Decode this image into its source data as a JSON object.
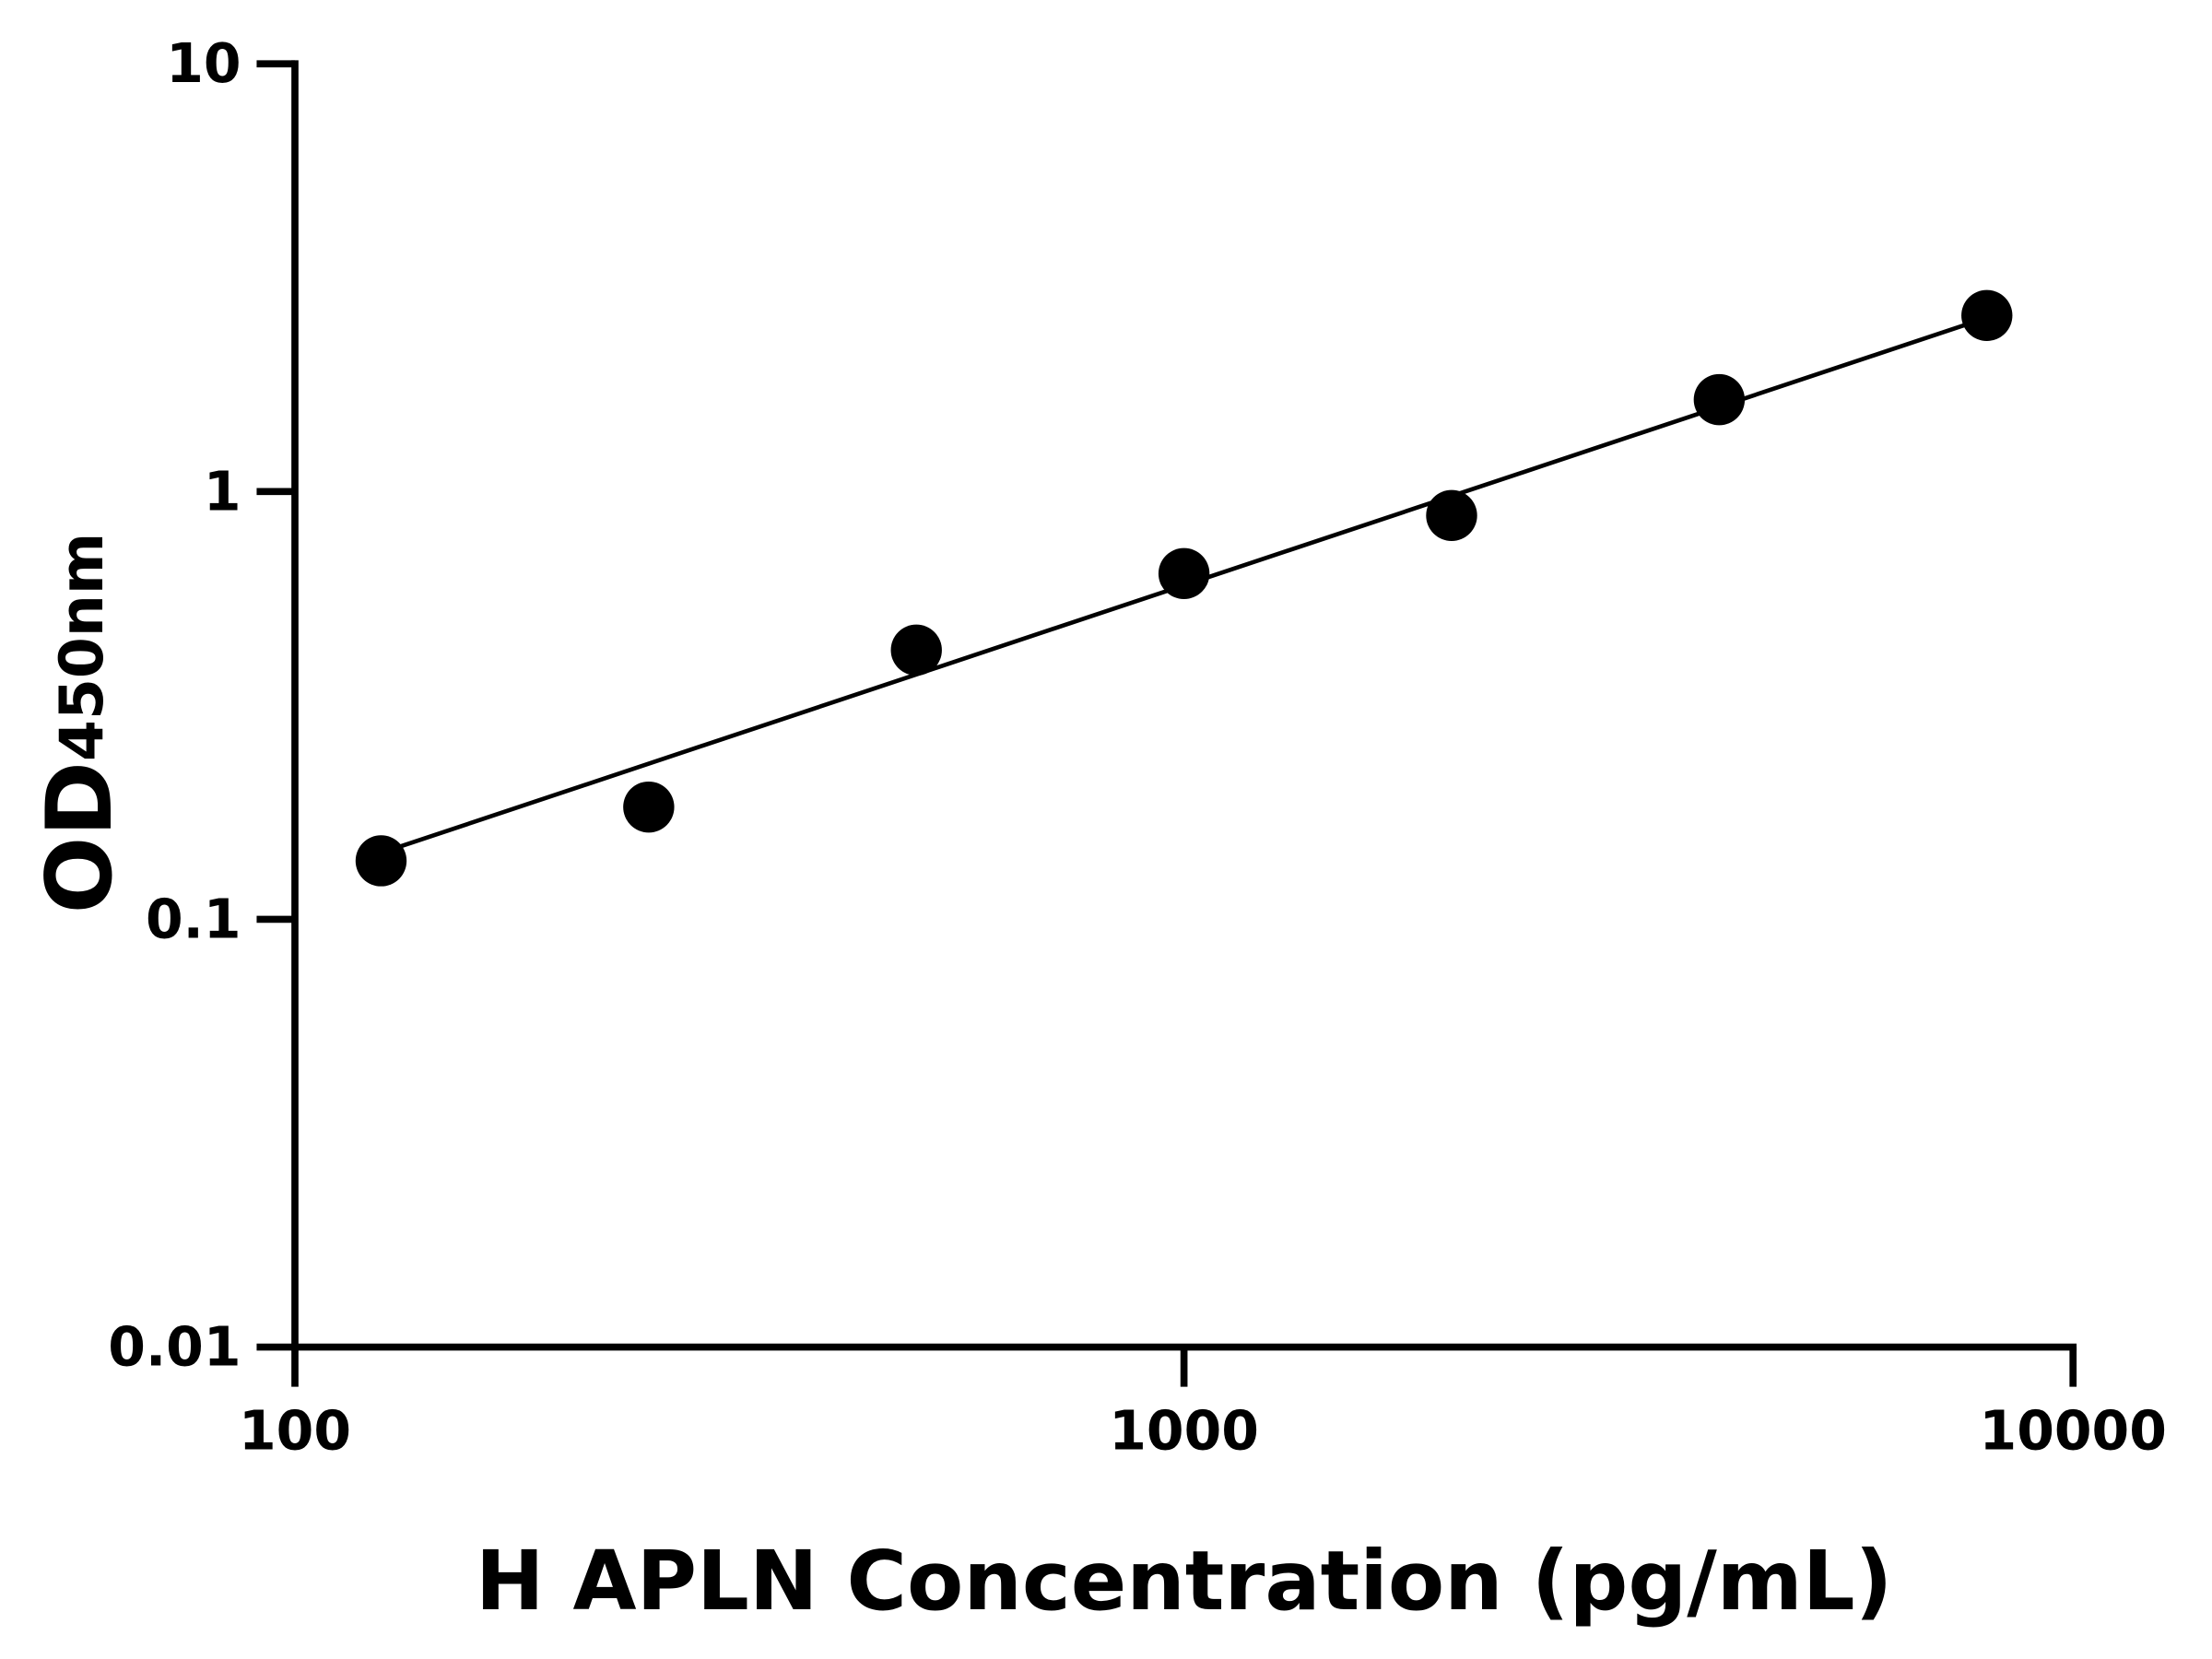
{
  "chart_data": {
    "type": "scatter",
    "x_label": "H APLN Concentration (pg/mL)",
    "y_label": "OD",
    "y_label_sub": "450nm",
    "x_scale": "log",
    "y_scale": "log",
    "xlim": [
      100,
      10000
    ],
    "xticks": [
      100,
      1000,
      10000
    ],
    "ylim": [
      0.01,
      10
    ],
    "yticks": [
      0.01,
      0.1,
      1,
      10
    ],
    "grid": false,
    "series": [
      {
        "color": "#000000",
        "x": [
          125,
          250,
          500,
          1000,
          2000,
          4000,
          8000
        ],
        "values": [
          0.137,
          0.183,
          0.426,
          0.643,
          0.879,
          1.64,
          2.58
        ]
      }
    ],
    "fit_line": {
      "color": "#000000",
      "x": [
        125,
        8000
      ],
      "values": [
        0.143,
        2.55
      ]
    }
  }
}
